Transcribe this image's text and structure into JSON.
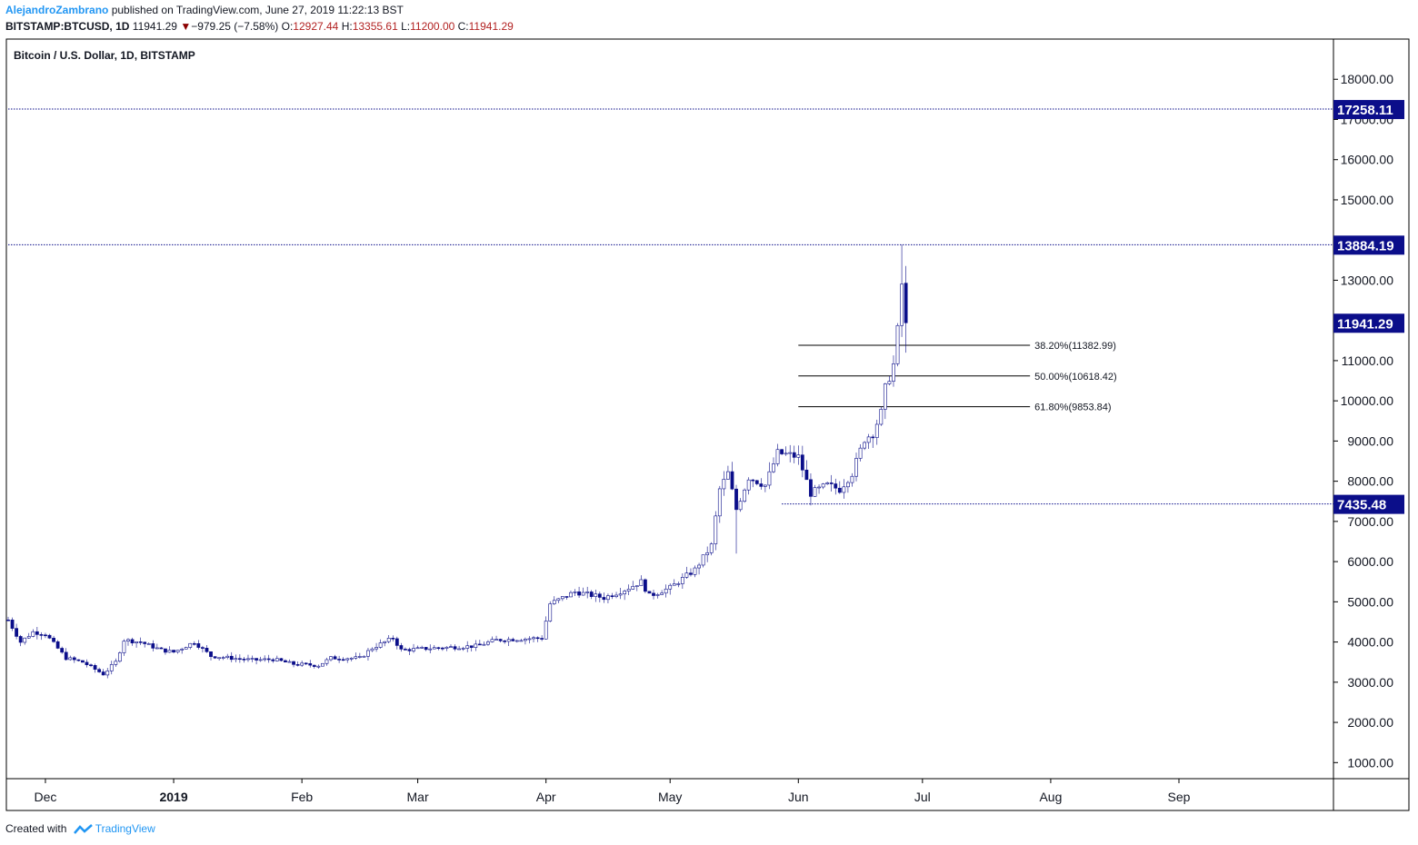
{
  "header": {
    "author": "AlejandroZambrano",
    "published": "published on TradingView.com, June 27, 2019 11:22:13 BST",
    "symbol": "BITSTAMP:BTCUSD, 1D",
    "last": "11941.29",
    "change": "−979.25 (−7.58%)",
    "open_label": "O:",
    "open": "12927.44",
    "high_label": "H:",
    "high": "13355.61",
    "low_label": "L:",
    "low": "11200.00",
    "close_label": "C:",
    "close": "11941.29",
    "down_icon": "triangle-down-icon"
  },
  "footer": {
    "created_with": "Created with",
    "brand": "TradingView",
    "logo_icon": "tradingview-logo-icon"
  },
  "colors": {
    "candle_up": "#ffffff",
    "candle_down": "#0b0e8a",
    "candle_border": "#0b0e8a",
    "level_line": "#0b0e8a",
    "fib_line": "#000000",
    "label_bg": "#0b0e8a"
  },
  "chart_data": {
    "type": "candlestick",
    "title": "Bitcoin / U.S. Dollar, 1D, BITSTAMP",
    "ylim": [
      600,
      19000
    ],
    "y_ticks": [
      "18000.00",
      "17000.00",
      "16000.00",
      "15000.00",
      "13000.00",
      "11000.00",
      "10000.00",
      "9000.00",
      "8000.00",
      "7000.00",
      "6000.00",
      "5000.00",
      "4000.00",
      "3000.00",
      "2000.00",
      "1000.00"
    ],
    "x_ticks": [
      "Dec",
      "2019",
      "Feb",
      "Mar",
      "Apr",
      "May",
      "Jun",
      "Jul",
      "Aug",
      "Sep"
    ],
    "x_tick_dates": [
      "2018-12-01",
      "2019-01-01",
      "2019-02-01",
      "2019-03-01",
      "2019-04-01",
      "2019-05-01",
      "2019-06-01",
      "2019-07-01",
      "2019-08-01",
      "2019-09-01"
    ],
    "x_range": [
      "2018-11-22",
      "2019-09-30"
    ],
    "horizontal_levels": [
      {
        "value": 17258.11,
        "label": "17258.11",
        "from": "2018-11-22"
      },
      {
        "value": 13884.19,
        "label": "13884.19",
        "from": "2018-11-22"
      },
      {
        "value": 7435.48,
        "label": "7435.48",
        "from": "2019-05-28"
      }
    ],
    "last_price_label": {
      "value": 11941.29,
      "label": "11941.29"
    },
    "fibonacci": [
      {
        "value": 11382.99,
        "label": "38.20%(11382.99)"
      },
      {
        "value": 10618.42,
        "label": "50.00%(10618.42)"
      },
      {
        "value": 9853.84,
        "label": "61.80%(9853.84)"
      }
    ],
    "fib_range": [
      "2019-06-01",
      "2019-07-27"
    ],
    "keypoints": [
      [
        "2018-11-22",
        4550
      ],
      [
        "2018-11-25",
        4000
      ],
      [
        "2018-11-28",
        4250
      ],
      [
        "2018-12-01",
        4200
      ],
      [
        "2018-12-06",
        3600
      ],
      [
        "2018-12-10",
        3500
      ],
      [
        "2018-12-15",
        3200
      ],
      [
        "2018-12-18",
        3500
      ],
      [
        "2018-12-20",
        4050
      ],
      [
        "2018-12-24",
        4000
      ],
      [
        "2018-12-29",
        3800
      ],
      [
        "2019-01-01",
        3750
      ],
      [
        "2019-01-06",
        4000
      ],
      [
        "2019-01-10",
        3650
      ],
      [
        "2019-01-15",
        3600
      ],
      [
        "2019-01-20",
        3550
      ],
      [
        "2019-01-25",
        3570
      ],
      [
        "2019-01-30",
        3450
      ],
      [
        "2019-02-05",
        3420
      ],
      [
        "2019-02-08",
        3600
      ],
      [
        "2019-02-15",
        3600
      ],
      [
        "2019-02-18",
        3850
      ],
      [
        "2019-02-23",
        4100
      ],
      [
        "2019-02-25",
        3800
      ],
      [
        "2019-03-05",
        3850
      ],
      [
        "2019-03-15",
        3900
      ],
      [
        "2019-03-20",
        4050
      ],
      [
        "2019-03-31",
        4100
      ],
      [
        "2019-04-02",
        4950
      ],
      [
        "2019-04-08",
        5250
      ],
      [
        "2019-04-15",
        5100
      ],
      [
        "2019-04-20",
        5300
      ],
      [
        "2019-04-24",
        5500
      ],
      [
        "2019-04-26",
        5150
      ],
      [
        "2019-05-01",
        5350
      ],
      [
        "2019-05-07",
        5800
      ],
      [
        "2019-05-11",
        6400
      ],
      [
        "2019-05-13",
        7800
      ],
      [
        "2019-05-15",
        8200
      ],
      [
        "2019-05-17",
        7300
      ],
      [
        "2019-05-20",
        8100
      ],
      [
        "2019-05-24",
        7900
      ],
      [
        "2019-05-27",
        8700
      ],
      [
        "2019-05-30",
        8650
      ],
      [
        "2019-06-01",
        8600
      ],
      [
        "2019-06-04",
        7700
      ],
      [
        "2019-06-08",
        7900
      ],
      [
        "2019-06-11",
        7800
      ],
      [
        "2019-06-14",
        8200
      ],
      [
        "2019-06-17",
        9050
      ],
      [
        "2019-06-19",
        9200
      ],
      [
        "2019-06-21",
        9700
      ],
      [
        "2019-06-22",
        10300
      ],
      [
        "2019-06-24",
        10900
      ],
      [
        "2019-06-25",
        11750
      ],
      [
        "2019-06-26",
        12900
      ],
      [
        "2019-06-27",
        11941.29
      ]
    ]
  }
}
